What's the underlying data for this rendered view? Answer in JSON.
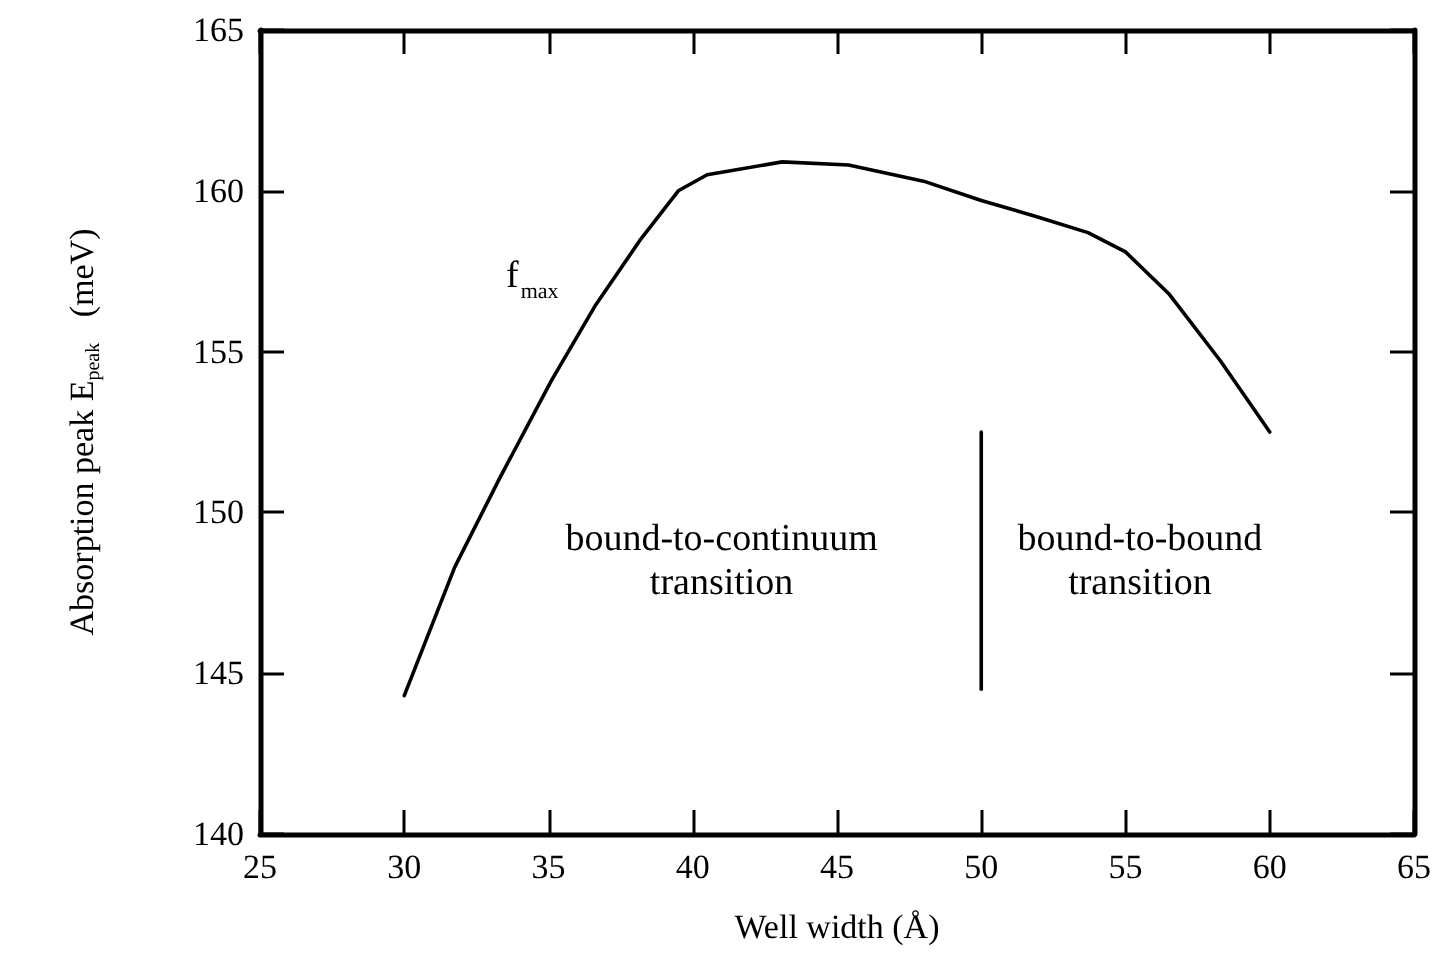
{
  "chart_data": {
    "type": "line",
    "xlabel": "Well width (Å)",
    "ylabel": "Absorption peak E$_{peak}$   (meV)",
    "xlim": [
      25,
      65
    ],
    "xticks": [
      25,
      30,
      35,
      40,
      45,
      50,
      55,
      60,
      65
    ],
    "ylim": [
      140,
      165
    ],
    "yticks": [
      140,
      145,
      150,
      155,
      160,
      165
    ],
    "series": [
      {
        "name": "f$_{max}$",
        "color": "#000000",
        "x": [
          30,
          31.75,
          33.3,
          35.1,
          36.6,
          38.2,
          39.5,
          40.5,
          43.1,
          45.4,
          48,
          50,
          51.9,
          53.7,
          55,
          56.5,
          58.3,
          60
        ],
        "values": [
          144.3,
          148.3,
          151.05,
          154.1,
          156.4,
          158.5,
          160,
          160.5,
          160.9,
          160.8,
          160.3,
          159.7,
          159.2,
          158.7,
          158.1,
          156.8,
          154.7,
          152.5
        ]
      },
      {
        "color": "#000000",
        "x": [
          50,
          50
        ],
        "values": [
          144.5,
          152.5
        ]
      }
    ],
    "annotations": [
      "bound-to-continuum\ntransition",
      "bound-to-bound\ntransition"
    ],
    "grid": false,
    "legend": false,
    "marker": "none",
    "line_style": "solid"
  }
}
